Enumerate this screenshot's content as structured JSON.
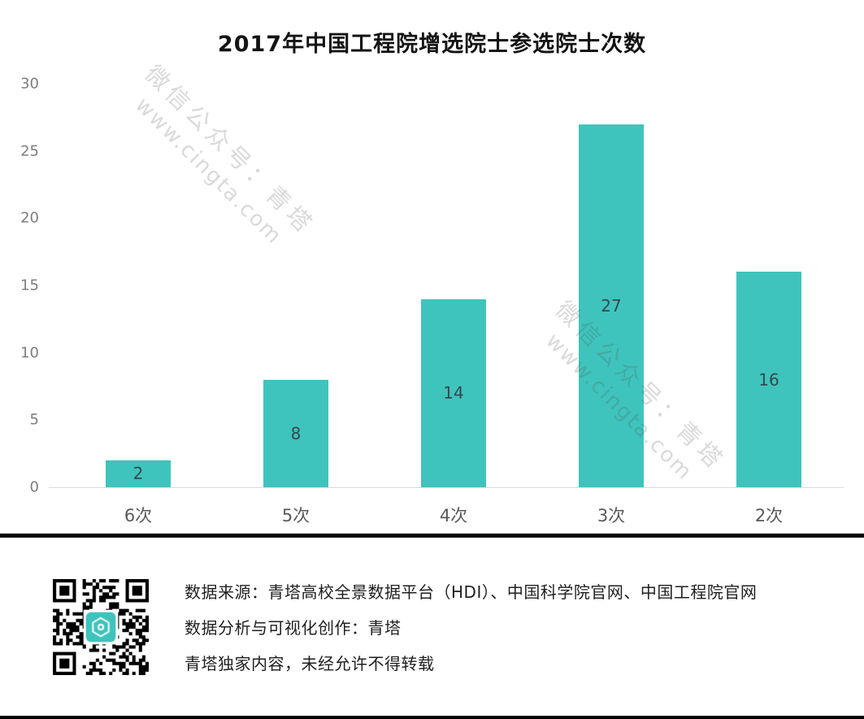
{
  "chart_data": {
    "type": "bar",
    "title": "2017年中国工程院增选院士参选院士次数",
    "categories": [
      "6次",
      "5次",
      "4次",
      "3次",
      "2次"
    ],
    "values": [
      2,
      8,
      14,
      27,
      16
    ],
    "xlabel": "",
    "ylabel": "",
    "ylim": [
      0,
      30
    ],
    "yticks": [
      0,
      5,
      10,
      15,
      20,
      25,
      30
    ],
    "grid": false,
    "legend": "none",
    "bar_color": "#3ec4bc",
    "bar_label_color": "#37474f"
  },
  "watermark": {
    "line1": "微信公众号：青塔",
    "line2": "www.cingta.com"
  },
  "footer": {
    "lines": [
      "数据来源：青塔高校全景数据平台（HDI）、中国科学院官网、中国工程院官网",
      "数据分析与可视化创作：青塔",
      "青塔独家内容，未经允许不得转载"
    ],
    "qr_center_color": "#3ec4bc"
  }
}
